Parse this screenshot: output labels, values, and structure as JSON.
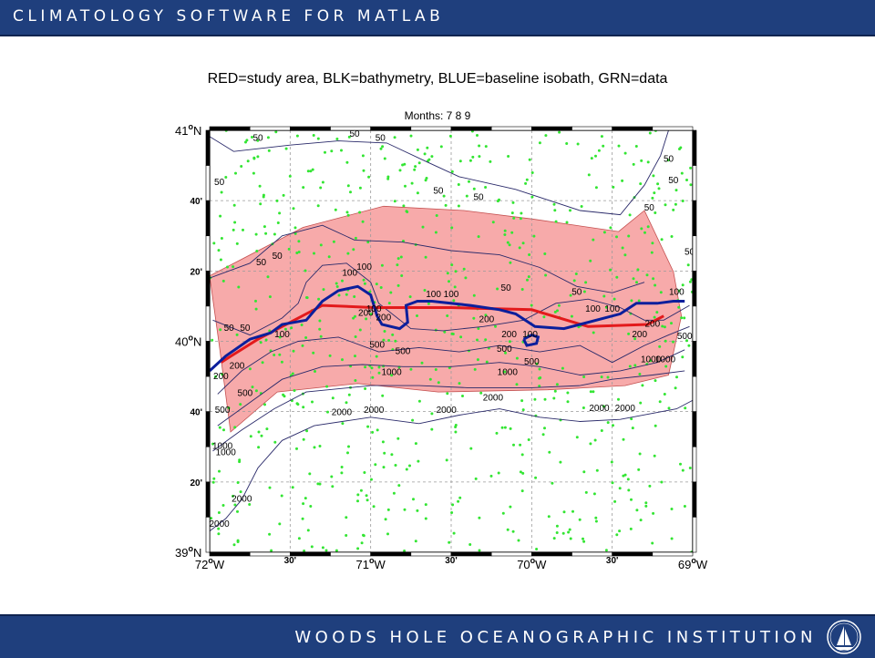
{
  "header": {
    "title": "CLIMATOLOGY SOFTWARE FOR MATLAB"
  },
  "footer": {
    "title": "WOODS HOLE OCEANOGRAPHIC INSTITUTION",
    "logo_icon": "whoi-sailboat-logo"
  },
  "figure": {
    "title": "RED=study area, BLK=bathymetry, BLUE=baseline isobath, GRN=data",
    "subtitle": "Months: 7 8 9"
  },
  "colors": {
    "banner": "#1f3f7d",
    "study_area_fill": "#f7aaaa",
    "study_line": "#e31a1c",
    "baseline_isobath": "#0c1f9c",
    "bathymetry": "#2a2a6a",
    "data_points": "#33e533",
    "grid": "#9a9a9a"
  },
  "axes": {
    "lon_range": [
      -72,
      -69
    ],
    "lat_range": [
      39,
      41
    ],
    "lon_ticks": [
      {
        "lon": -72,
        "deg": "72",
        "hemi": "W"
      },
      {
        "lon": -71.5,
        "min": "30'"
      },
      {
        "lon": -71,
        "deg": "71",
        "hemi": "W"
      },
      {
        "lon": -70.5,
        "min": "30'"
      },
      {
        "lon": -70,
        "deg": "70",
        "hemi": "W"
      },
      {
        "lon": -69.5,
        "min": "30'"
      },
      {
        "lon": -69,
        "deg": "69",
        "hemi": "W"
      }
    ],
    "lat_ticks": [
      {
        "lat": 41,
        "deg": "41",
        "hemi": "N"
      },
      {
        "lat": 40.6667,
        "min": "40'"
      },
      {
        "lat": 40.3333,
        "min": "20'"
      },
      {
        "lat": 40,
        "deg": "40",
        "hemi": "N"
      },
      {
        "lat": 39.6667,
        "min": "40'"
      },
      {
        "lat": 39.3333,
        "min": "20'"
      },
      {
        "lat": 39,
        "deg": "39",
        "hemi": "N"
      }
    ],
    "degree_symbol": "o"
  },
  "chart_data": {
    "type": "map",
    "study_area_polygon": [
      [
        -72,
        40.31
      ],
      [
        -71.42,
        40.54
      ],
      [
        -70.92,
        40.64
      ],
      [
        -70.42,
        40.62
      ],
      [
        -70.0,
        40.58
      ],
      [
        -69.46,
        40.52
      ],
      [
        -69.3,
        40.62
      ],
      [
        -69.12,
        40.33
      ],
      [
        -69.07,
        40.12
      ],
      [
        -69.15,
        39.84
      ],
      [
        -69.42,
        39.79
      ],
      [
        -69.9,
        39.77
      ],
      [
        -70.58,
        39.76
      ],
      [
        -71.08,
        39.8
      ],
      [
        -71.58,
        39.76
      ],
      [
        -71.87,
        39.57
      ],
      [
        -71.94,
        39.98
      ]
    ],
    "study_line": [
      [
        -71.93,
        39.9
      ],
      [
        -71.7,
        40.01
      ],
      [
        -71.5,
        40.09
      ],
      [
        -71.3,
        40.17
      ],
      [
        -70.98,
        40.16
      ],
      [
        -70.5,
        40.16
      ],
      [
        -70.0,
        40.15
      ],
      [
        -69.65,
        40.07
      ],
      [
        -69.28,
        40.08
      ],
      [
        -69.18,
        40.12
      ]
    ],
    "baseline_isobath": [
      [
        -72,
        39.86
      ],
      [
        -71.9,
        39.93
      ],
      [
        -71.75,
        40.01
      ],
      [
        -71.62,
        40.04
      ],
      [
        -71.55,
        40.08
      ],
      [
        -71.4,
        40.1
      ],
      [
        -71.3,
        40.19
      ],
      [
        -71.2,
        40.24
      ],
      [
        -71.08,
        40.26
      ],
      [
        -71.0,
        40.22
      ],
      [
        -70.96,
        40.12
      ],
      [
        -70.93,
        40.08
      ],
      [
        -70.82,
        40.06
      ],
      [
        -70.77,
        40.09
      ],
      [
        -70.78,
        40.17
      ],
      [
        -70.71,
        40.19
      ],
      [
        -70.62,
        40.19
      ],
      [
        -70.38,
        40.17
      ],
      [
        -70.2,
        40.15
      ],
      [
        -70.1,
        40.13
      ],
      [
        -69.98,
        40.07
      ],
      [
        -69.8,
        40.06
      ],
      [
        -69.7,
        40.08
      ],
      [
        -69.45,
        40.13
      ],
      [
        -69.35,
        40.18
      ],
      [
        -69.22,
        40.18
      ],
      [
        -69.12,
        40.19
      ],
      [
        -69.05,
        40.19
      ]
    ],
    "baseline_island": [
      [
        -70.05,
        40.01
      ],
      [
        -70.0,
        40.03
      ],
      [
        -69.96,
        40.02
      ],
      [
        -69.97,
        39.99
      ],
      [
        -70.03,
        39.98
      ],
      [
        -70.05,
        40.01
      ]
    ],
    "isobaths": [
      {
        "depth": "50",
        "points": [
          [
            -72,
            40.97
          ],
          [
            -71.85,
            40.9
          ],
          [
            -71.5,
            40.93
          ],
          [
            -71.2,
            40.95
          ],
          [
            -70.9,
            40.94
          ],
          [
            -70.65,
            40.85
          ],
          [
            -70.45,
            40.78
          ],
          [
            -70.1,
            40.72
          ],
          [
            -69.7,
            40.62
          ],
          [
            -69.45,
            40.6
          ],
          [
            -69.3,
            40.74
          ],
          [
            -69.2,
            40.88
          ],
          [
            -69.15,
            41.0
          ]
        ]
      },
      {
        "depth": "50",
        "points": [
          [
            -71.98,
            40.1
          ],
          [
            -71.75,
            40.03
          ],
          [
            -71.55,
            40.11
          ],
          [
            -71.45,
            40.18
          ],
          [
            -71.4,
            40.28
          ],
          [
            -71.3,
            40.36
          ],
          [
            -71.15,
            40.37
          ],
          [
            -71.0,
            40.28
          ],
          [
            -70.95,
            40.18
          ],
          [
            -70.75,
            40.06
          ],
          [
            -70.55,
            40.05
          ],
          [
            -70.3,
            40.07
          ],
          [
            -70.05,
            40.1
          ],
          [
            -69.85,
            40.18
          ],
          [
            -69.65,
            40.2
          ],
          [
            -69.45,
            40.16
          ],
          [
            -69.3,
            40.1
          ],
          [
            -69.18,
            40.1
          ],
          [
            -69.02,
            40.17
          ]
        ]
      },
      {
        "depth": "50",
        "points": [
          [
            -72,
            40.3
          ],
          [
            -71.75,
            40.37
          ],
          [
            -71.55,
            40.5
          ],
          [
            -71.3,
            40.55
          ],
          [
            -71.1,
            40.48
          ],
          [
            -70.8,
            40.47
          ],
          [
            -70.5,
            40.43
          ],
          [
            -70.2,
            40.41
          ],
          [
            -69.95,
            40.35
          ],
          [
            -69.72,
            40.26
          ],
          [
            -69.5,
            40.23
          ],
          [
            -69.3,
            40.28
          ]
        ]
      },
      {
        "depth": "200",
        "points": [
          [
            -71.95,
            39.75
          ],
          [
            -71.8,
            39.86
          ],
          [
            -71.62,
            39.95
          ],
          [
            -71.45,
            40.0
          ],
          [
            -71.2,
            40.02
          ],
          [
            -70.95,
            39.95
          ],
          [
            -70.7,
            39.97
          ],
          [
            -70.45,
            39.95
          ],
          [
            -70.2,
            39.98
          ],
          [
            -69.95,
            39.95
          ],
          [
            -69.7,
            39.98
          ],
          [
            -69.5,
            39.9
          ],
          [
            -69.3,
            39.98
          ],
          [
            -69.15,
            40.03
          ],
          [
            -69.02,
            40.07
          ]
        ]
      },
      {
        "depth": "500",
        "points": [
          [
            -71.95,
            39.6
          ],
          [
            -71.75,
            39.71
          ],
          [
            -71.55,
            39.82
          ],
          [
            -71.3,
            39.88
          ],
          [
            -71.05,
            39.89
          ],
          [
            -70.8,
            39.88
          ],
          [
            -70.5,
            39.88
          ],
          [
            -70.2,
            39.9
          ],
          [
            -69.95,
            39.88
          ],
          [
            -69.7,
            39.84
          ],
          [
            -69.45,
            39.86
          ],
          [
            -69.22,
            39.9
          ],
          [
            -69.05,
            39.96
          ]
        ]
      },
      {
        "depth": "1000",
        "points": [
          [
            -71.98,
            39.48
          ],
          [
            -71.8,
            39.58
          ],
          [
            -71.6,
            39.68
          ],
          [
            -71.4,
            39.76
          ],
          [
            -71.0,
            39.79
          ],
          [
            -70.7,
            39.79
          ],
          [
            -70.4,
            39.78
          ],
          [
            -70.0,
            39.78
          ],
          [
            -69.7,
            39.79
          ],
          [
            -69.5,
            39.82
          ],
          [
            -69.25,
            39.84
          ],
          [
            -69.05,
            39.86
          ]
        ]
      },
      {
        "depth": "2000",
        "points": [
          [
            -72,
            39.1
          ],
          [
            -71.9,
            39.16
          ],
          [
            -71.8,
            39.25
          ],
          [
            -71.7,
            39.4
          ],
          [
            -71.55,
            39.53
          ],
          [
            -71.35,
            39.6
          ],
          [
            -71.0,
            39.64
          ],
          [
            -70.7,
            39.61
          ],
          [
            -70.45,
            39.65
          ],
          [
            -70.2,
            39.68
          ],
          [
            -69.95,
            39.64
          ],
          [
            -69.7,
            39.62
          ],
          [
            -69.45,
            39.63
          ],
          [
            -69.1,
            39.68
          ],
          [
            -69.0,
            39.72
          ]
        ]
      }
    ],
    "contour_labels": [
      {
        "text": "50",
        "lon": -71.7,
        "lat": 40.95
      },
      {
        "text": "50",
        "lon": -71.1,
        "lat": 40.97
      },
      {
        "text": "50",
        "lon": -70.94,
        "lat": 40.95
      },
      {
        "text": "50",
        "lon": -71.94,
        "lat": 40.74
      },
      {
        "text": "50",
        "lon": -70.58,
        "lat": 40.7
      },
      {
        "text": "50",
        "lon": -70.33,
        "lat": 40.67
      },
      {
        "text": "50",
        "lon": -69.27,
        "lat": 40.62
      },
      {
        "text": "50",
        "lon": -69.15,
        "lat": 40.85
      },
      {
        "text": "50",
        "lon": -69.12,
        "lat": 40.75
      },
      {
        "text": "50",
        "lon": -69.02,
        "lat": 40.41
      },
      {
        "text": "50",
        "lon": -71.68,
        "lat": 40.36
      },
      {
        "text": "50",
        "lon": -71.58,
        "lat": 40.39
      },
      {
        "text": "50",
        "lon": -71.88,
        "lat": 40.05
      },
      {
        "text": "50",
        "lon": -71.78,
        "lat": 40.05
      },
      {
        "text": "50",
        "lon": -70.16,
        "lat": 40.24
      },
      {
        "text": "50",
        "lon": -69.72,
        "lat": 40.22
      },
      {
        "text": "100",
        "lon": -71.13,
        "lat": 40.31
      },
      {
        "text": "100",
        "lon": -71.04,
        "lat": 40.34
      },
      {
        "text": "100",
        "lon": -70.98,
        "lat": 40.14
      },
      {
        "text": "100",
        "lon": -71.55,
        "lat": 40.02
      },
      {
        "text": "100",
        "lon": -70.61,
        "lat": 40.21
      },
      {
        "text": "100",
        "lon": -70.5,
        "lat": 40.21
      },
      {
        "text": "100",
        "lon": -69.62,
        "lat": 40.14
      },
      {
        "text": "100",
        "lon": -69.5,
        "lat": 40.14
      },
      {
        "text": "100",
        "lon": -69.1,
        "lat": 40.22
      },
      {
        "text": "100",
        "lon": -70.01,
        "lat": 40.02
      },
      {
        "text": "200",
        "lon": -71.03,
        "lat": 40.12
      },
      {
        "text": "200",
        "lon": -70.92,
        "lat": 40.1
      },
      {
        "text": "200",
        "lon": -71.83,
        "lat": 39.87
      },
      {
        "text": "200",
        "lon": -71.93,
        "lat": 39.82
      },
      {
        "text": "200",
        "lon": -70.28,
        "lat": 40.09
      },
      {
        "text": "200",
        "lon": -70.14,
        "lat": 40.02
      },
      {
        "text": "200",
        "lon": -69.33,
        "lat": 40.02
      },
      {
        "text": "200",
        "lon": -69.25,
        "lat": 40.07
      },
      {
        "text": "500",
        "lon": -70.96,
        "lat": 39.97
      },
      {
        "text": "500",
        "lon": -70.8,
        "lat": 39.94
      },
      {
        "text": "500",
        "lon": -70.17,
        "lat": 39.95
      },
      {
        "text": "500",
        "lon": -70.0,
        "lat": 39.89
      },
      {
        "text": "500",
        "lon": -71.78,
        "lat": 39.74
      },
      {
        "text": "500",
        "lon": -71.92,
        "lat": 39.66
      },
      {
        "text": "500",
        "lon": -69.05,
        "lat": 40.01
      },
      {
        "text": "1000",
        "lon": -70.87,
        "lat": 39.84
      },
      {
        "text": "1000",
        "lon": -70.15,
        "lat": 39.84
      },
      {
        "text": "1000",
        "lon": -69.26,
        "lat": 39.9
      },
      {
        "text": "1000",
        "lon": -69.17,
        "lat": 39.9
      },
      {
        "text": "1000",
        "lon": -71.92,
        "lat": 39.49
      },
      {
        "text": "1000",
        "lon": -71.9,
        "lat": 39.46
      },
      {
        "text": "2000",
        "lon": -71.18,
        "lat": 39.65
      },
      {
        "text": "2000",
        "lon": -70.98,
        "lat": 39.66
      },
      {
        "text": "2000",
        "lon": -70.53,
        "lat": 39.66
      },
      {
        "text": "2000",
        "lon": -70.24,
        "lat": 39.72
      },
      {
        "text": "2000",
        "lon": -69.58,
        "lat": 39.67
      },
      {
        "text": "2000",
        "lon": -69.42,
        "lat": 39.67
      },
      {
        "text": "2000",
        "lon": -71.8,
        "lat": 39.24
      },
      {
        "text": "2000",
        "lon": -71.94,
        "lat": 39.12
      }
    ],
    "data_points_count": 700
  }
}
